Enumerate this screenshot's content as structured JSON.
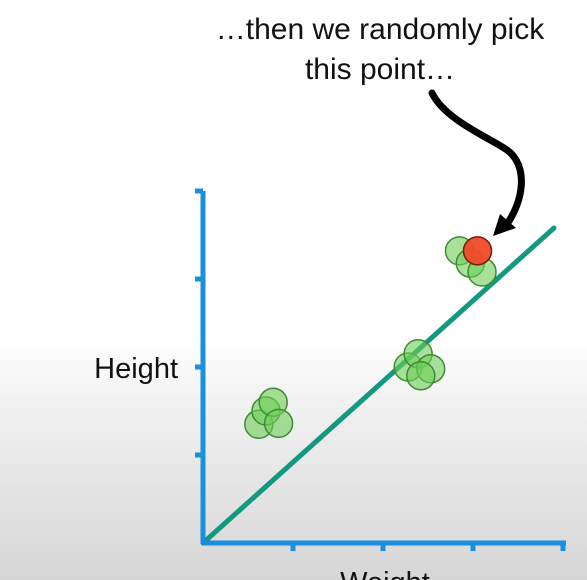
{
  "annotation": {
    "line1": "…then we randomly pick",
    "line2": "this point…"
  },
  "chart_data": {
    "type": "scatter",
    "xlabel": "Weight",
    "ylabel": "Height",
    "xlim": [
      0,
      4
    ],
    "ylim": [
      0,
      4
    ],
    "grid": false,
    "series": [
      {
        "x": [
          0.62,
          0.7,
          0.78,
          0.84,
          2.28,
          2.39,
          2.53,
          2.42,
          2.85,
          2.97,
          3.1
        ],
        "y": [
          1.35,
          1.5,
          1.6,
          1.36,
          2.0,
          2.15,
          1.98,
          1.9,
          3.32,
          3.18,
          3.08
        ],
        "color": "#6ecf57"
      },
      {
        "x": [
          3.05
        ],
        "y": [
          3.32
        ],
        "color": "#f04a2a"
      }
    ],
    "line": {
      "x": [
        0,
        3.9
      ],
      "y": [
        0,
        3.58
      ],
      "color": "#129980"
    },
    "axis_color": "#1a8fe0"
  }
}
